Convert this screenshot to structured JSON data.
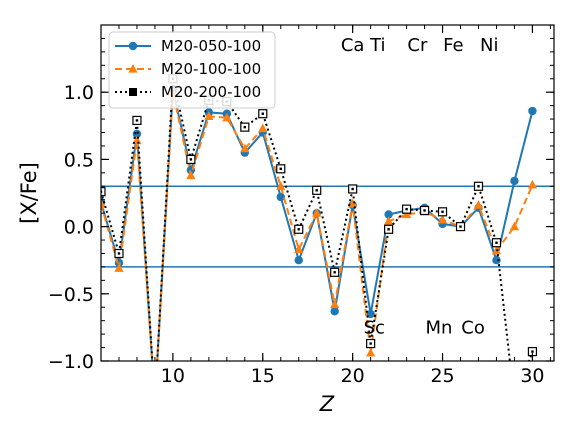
{
  "chart_data": {
    "type": "line",
    "xlabel": "Z",
    "ylabel": "[X/Fe]",
    "xlim": [
      6,
      31.2
    ],
    "ylim": [
      -1.0,
      1.5
    ],
    "xticks": [
      10,
      15,
      20,
      25,
      30
    ],
    "xtick_labels": [
      "10",
      "15",
      "20",
      "25",
      "30"
    ],
    "yticks": [
      -1.0,
      -0.5,
      0.0,
      0.5,
      1.0
    ],
    "ytick_labels": [
      "−1.0",
      "−0.5",
      "0.0",
      "0.5",
      "1.0"
    ],
    "legend_position": "top-left",
    "hlines": [
      0.3,
      -0.3
    ],
    "element_labels": [
      {
        "text": "Ca",
        "x": 20.0,
        "y": 1.35
      },
      {
        "text": "Ti",
        "x": 21.4,
        "y": 1.35
      },
      {
        "text": "Cr",
        "x": 23.6,
        "y": 1.35
      },
      {
        "text": "Fe",
        "x": 25.6,
        "y": 1.35
      },
      {
        "text": "Ni",
        "x": 27.6,
        "y": 1.35
      },
      {
        "text": "Sc",
        "x": 21.2,
        "y": -0.75
      },
      {
        "text": "Mn",
        "x": 24.8,
        "y": -0.75
      },
      {
        "text": "Co",
        "x": 26.7,
        "y": -0.75
      }
    ],
    "series": [
      {
        "name": "M20-050-100",
        "color": "#1f77b4",
        "style": "solid",
        "marker": "circle",
        "x": [
          6,
          7,
          8,
          9,
          10,
          11,
          12,
          13,
          14,
          15,
          16,
          17,
          18,
          19,
          20,
          21,
          22,
          23,
          24,
          25,
          26,
          27,
          28,
          29,
          30
        ],
        "y": [
          0.18,
          -0.27,
          0.69,
          -1.3,
          1.02,
          0.42,
          0.85,
          0.84,
          0.55,
          0.7,
          0.22,
          -0.25,
          0.1,
          -0.63,
          0.16,
          -0.65,
          0.09,
          0.12,
          0.14,
          0.02,
          0.0,
          0.14,
          -0.25,
          0.34,
          0.86
        ]
      },
      {
        "name": "M20-100-100",
        "color": "#ff7f0e",
        "style": "dashed",
        "marker": "triangle",
        "x": [
          6,
          7,
          8,
          9,
          10,
          11,
          12,
          13,
          14,
          15,
          16,
          17,
          18,
          19,
          20,
          21,
          22,
          23,
          24,
          25,
          26,
          27,
          28,
          29,
          30
        ],
        "y": [
          0.17,
          -0.31,
          0.64,
          -1.3,
          1.0,
          0.38,
          0.82,
          0.81,
          0.58,
          0.73,
          0.3,
          -0.17,
          0.1,
          -0.58,
          0.17,
          -0.94,
          0.04,
          0.09,
          0.11,
          0.05,
          0.0,
          0.16,
          -0.18,
          0.0,
          0.31
        ]
      },
      {
        "name": "M20-200-100",
        "color": "#000000",
        "style": "dotted",
        "marker": "square",
        "x": [
          6,
          7,
          8,
          9,
          10,
          11,
          12,
          13,
          14,
          15,
          16,
          17,
          18,
          19,
          20,
          21,
          22,
          23,
          24,
          25,
          26,
          27,
          28,
          29,
          30
        ],
        "y": [
          0.26,
          -0.2,
          0.79,
          -1.3,
          1.1,
          0.5,
          0.94,
          0.93,
          0.74,
          0.84,
          0.43,
          -0.02,
          0.27,
          -0.34,
          0.28,
          -0.87,
          -0.02,
          0.13,
          0.12,
          0.11,
          0.0,
          0.3,
          -0.12,
          -1.3,
          -0.93
        ]
      }
    ]
  }
}
